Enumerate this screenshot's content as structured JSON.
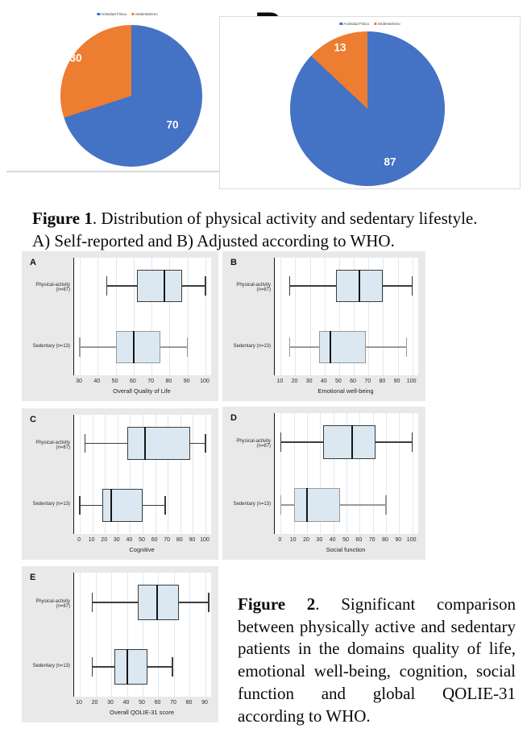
{
  "colors": {
    "blue": "#4472c4",
    "orange": "#ed7d31",
    "box_fill": "#dbe8f1",
    "panel_bg": "#e9e9e9",
    "grid": "#dfe9f0",
    "median": "#151515"
  },
  "figure1": {
    "label_a": "A",
    "label_b": "B",
    "caption": {
      "bold": "Figure 1",
      "text": ". Distribution of physical activity and sedentary lifestyle. A) Self-reported and B) Adjusted according to WHO."
    }
  },
  "figure2": {
    "caption": {
      "bold": "Figure 2",
      "text": ". Significant comparison between physically active and sedentary patients in the domains quality of life, emotional well-being, cognition, social function and global QOLIE-31 according to WHO."
    }
  },
  "chart_data": [
    {
      "type": "pie",
      "panel": "A",
      "title": "Self-reported",
      "labels": [
        "Actividad Física",
        "Sedentarismo"
      ],
      "values": [
        70,
        30
      ],
      "colors": [
        "#4472c4",
        "#ed7d31"
      ],
      "legend_position": "top"
    },
    {
      "type": "pie",
      "panel": "B",
      "title": "Adjusted according to WHO",
      "labels": [
        "Actividad Física",
        "Sedentarismo"
      ],
      "values": [
        87,
        13
      ],
      "colors": [
        "#4472c4",
        "#ed7d31"
      ],
      "legend_position": "top"
    },
    {
      "type": "boxplot",
      "panel": "A",
      "xlabel": "Overall Quality of Life",
      "ticks": [
        30,
        40,
        50,
        60,
        70,
        80,
        90,
        100
      ],
      "xlim": [
        30,
        100
      ],
      "groups": [
        {
          "label": "Physical-activity (n=87)",
          "whisker_low": 45,
          "q1": 62,
          "median": 77,
          "q3": 87,
          "whisker_high": 100,
          "stroke": "#3c3c3c"
        },
        {
          "label": "Sedentary (n=13)",
          "whisker_low": 30,
          "q1": 50,
          "median": 60,
          "q3": 75,
          "whisker_high": 90,
          "stroke": "#9a9a9a"
        }
      ]
    },
    {
      "type": "boxplot",
      "panel": "B",
      "xlabel": "Emotional well-being",
      "ticks": [
        10,
        20,
        30,
        40,
        50,
        60,
        70,
        80,
        90,
        100
      ],
      "xlim": [
        10,
        100
      ],
      "groups": [
        {
          "label": "Physical-activity (n=87)",
          "whisker_low": 16,
          "q1": 48,
          "median": 64,
          "q3": 80,
          "whisker_high": 100,
          "stroke": "#3c3c3c"
        },
        {
          "label": "Sedentary (n=13)",
          "whisker_low": 16,
          "q1": 36,
          "median": 44,
          "q3": 68,
          "whisker_high": 96,
          "stroke": "#9a9a9a"
        }
      ]
    },
    {
      "type": "boxplot",
      "panel": "C",
      "xlabel": "Cognitive",
      "ticks": [
        0,
        10,
        20,
        30,
        40,
        50,
        60,
        70,
        80,
        90,
        100
      ],
      "xlim": [
        0,
        100
      ],
      "groups": [
        {
          "label": "Physical-activity (n=87)",
          "whisker_low": 4,
          "q1": 38,
          "median": 52,
          "q3": 88,
          "whisker_high": 100,
          "stroke": "#3c3c3c"
        },
        {
          "label": "Sedentary (n=13)",
          "whisker_low": 0,
          "q1": 18,
          "median": 25,
          "q3": 50,
          "whisker_high": 68,
          "stroke": "#3c3c3c"
        }
      ]
    },
    {
      "type": "boxplot",
      "panel": "D",
      "xlabel": "Social function",
      "ticks": [
        0,
        10,
        20,
        30,
        40,
        50,
        60,
        70,
        80,
        90,
        100
      ],
      "xlim": [
        0,
        100
      ],
      "groups": [
        {
          "label": "Physical-activity (n=87)",
          "whisker_low": 0,
          "q1": 32,
          "median": 54,
          "q3": 72,
          "whisker_high": 100,
          "stroke": "#3c3c3c"
        },
        {
          "label": "Sedentary (n=13)",
          "whisker_low": 0,
          "q1": 10,
          "median": 20,
          "q3": 45,
          "whisker_high": 80,
          "stroke": "#9a9a9a"
        }
      ]
    },
    {
      "type": "boxplot",
      "panel": "E",
      "xlabel": "Overall QOLIE-31 score",
      "ticks": [
        10,
        20,
        30,
        40,
        50,
        60,
        70,
        80,
        90
      ],
      "xlim": [
        10,
        90
      ],
      "groups": [
        {
          "label": "Physical-activity (n=87)",
          "whisker_low": 18,
          "q1": 47,
          "median": 59,
          "q3": 73,
          "whisker_high": 92,
          "stroke": "#3c3c3c"
        },
        {
          "label": "Sedentary (n=13)",
          "whisker_low": 18,
          "q1": 32,
          "median": 40,
          "q3": 53,
          "whisker_high": 69,
          "stroke": "#3c3c3c"
        }
      ]
    }
  ]
}
